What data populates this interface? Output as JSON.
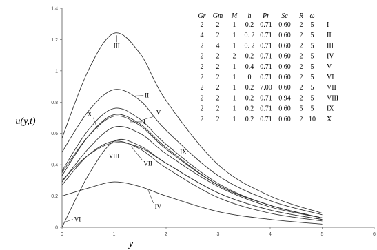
{
  "chart_data": {
    "type": "line",
    "xlabel": "y",
    "ylabel": "u(y,t)",
    "xlim": [
      0,
      6
    ],
    "ylim": [
      0,
      1.4
    ],
    "x_ticks": [
      "0",
      "1",
      "2",
      "3",
      "4",
      "5",
      "6"
    ],
    "y_ticks": [
      "0",
      "0.2",
      "0.4",
      "0.6",
      "0.8",
      "1",
      "1.2",
      "1.4"
    ],
    "grid": false,
    "series": [
      {
        "name": "I",
        "x": [
          0,
          0.5,
          1,
          1.5,
          2,
          3,
          4,
          5
        ],
        "y": [
          0.35,
          0.58,
          0.71,
          0.65,
          0.5,
          0.27,
          0.14,
          0.06
        ]
      },
      {
        "name": "II",
        "x": [
          0,
          0.5,
          1,
          1.5,
          2,
          3,
          4,
          5
        ],
        "y": [
          0.48,
          0.74,
          0.88,
          0.81,
          0.62,
          0.33,
          0.17,
          0.08
        ]
      },
      {
        "name": "III",
        "x": [
          0,
          0.5,
          1,
          1.5,
          2,
          3,
          4,
          5
        ],
        "y": [
          0.57,
          1.0,
          1.24,
          1.11,
          0.81,
          0.4,
          0.2,
          0.09
        ]
      },
      {
        "name": "IV",
        "x": [
          0,
          0.5,
          1,
          1.5,
          2,
          3,
          4,
          5
        ],
        "y": [
          0.2,
          0.25,
          0.29,
          0.26,
          0.2,
          0.1,
          0.05,
          0.02
        ]
      },
      {
        "name": "V",
        "x": [
          0,
          0.5,
          1,
          1.5,
          2,
          3,
          4,
          5
        ],
        "y": [
          0.36,
          0.62,
          0.76,
          0.69,
          0.53,
          0.28,
          0.14,
          0.06
        ]
      },
      {
        "name": "VI",
        "x": [
          0,
          0.5,
          1,
          1.5,
          2,
          3,
          4,
          5
        ],
        "y": [
          0.0,
          0.33,
          0.55,
          0.52,
          0.41,
          0.22,
          0.11,
          0.05
        ]
      },
      {
        "name": "VII",
        "x": [
          0,
          0.5,
          1,
          1.5,
          2,
          3,
          4,
          5
        ],
        "y": [
          0.27,
          0.46,
          0.55,
          0.5,
          0.38,
          0.19,
          0.09,
          0.04
        ]
      },
      {
        "name": "VIII",
        "x": [
          0,
          0.5,
          1,
          1.5,
          2,
          3,
          4,
          5
        ],
        "y": [
          0.3,
          0.46,
          0.54,
          0.51,
          0.41,
          0.22,
          0.11,
          0.05
        ]
      },
      {
        "name": "IX",
        "x": [
          0,
          0.5,
          1,
          1.5,
          2,
          3,
          4,
          5
        ],
        "y": [
          0.29,
          0.5,
          0.64,
          0.6,
          0.47,
          0.26,
          0.13,
          0.06
        ]
      },
      {
        "name": "X",
        "x": [
          0,
          0.5,
          1,
          1.5,
          2,
          3,
          4,
          5
        ],
        "y": [
          0.33,
          0.58,
          0.72,
          0.66,
          0.51,
          0.27,
          0.14,
          0.06
        ]
      }
    ],
    "curve_labels": [
      {
        "text": "I",
        "series": "I",
        "at_x": 1.3,
        "at_y": 0.7
      },
      {
        "text": "II",
        "series": "II",
        "at_x": 1.3,
        "at_y": 0.89
      },
      {
        "text": "III",
        "series": "III",
        "at_x": 1.05,
        "at_y": 1.17
      },
      {
        "text": "IV",
        "series": "IV",
        "at_x": 1.65,
        "at_y": 0.17
      },
      {
        "text": "V",
        "series": "V",
        "at_x": 1.52,
        "at_y": 0.78
      },
      {
        "text": "VI",
        "series": "VI",
        "at_x": 0.05,
        "at_y": 0.03
      },
      {
        "text": "VII",
        "series": "VII",
        "at_x": 1.33,
        "at_y": 0.48
      },
      {
        "text": "VIII",
        "series": "VIII",
        "at_x": 1.0,
        "at_y": 0.52
      },
      {
        "text": "IX",
        "series": "IX",
        "at_x": 1.95,
        "at_y": 0.56
      },
      {
        "text": "X",
        "series": "X",
        "at_x": 0.68,
        "at_y": 0.72
      }
    ],
    "table": {
      "headers": [
        "Gr",
        "Gm",
        "M",
        "h",
        "Pr",
        "Sc",
        "R",
        "ω",
        ""
      ],
      "rows": [
        [
          "2",
          "2",
          "1",
          "0.2",
          "0.71",
          "0.60",
          "2",
          "5",
          "I"
        ],
        [
          "4",
          "2",
          "1",
          "0. 2",
          "0.71",
          "0.60",
          "2",
          "5",
          "II"
        ],
        [
          "2",
          "4",
          "1",
          "0. 2",
          "0.71",
          "0.60",
          "2",
          "5",
          "III"
        ],
        [
          "2",
          "2",
          "2",
          "0.2",
          "0.71",
          "0.60",
          "2",
          "5",
          "IV"
        ],
        [
          "2",
          "2",
          "1",
          "0.4",
          "0.71",
          "0.60",
          "2",
          "5",
          "V"
        ],
        [
          "2",
          "2",
          "1",
          "0",
          "0.71",
          "0.60",
          "2",
          "5",
          "VI"
        ],
        [
          "2",
          "2",
          "1",
          "0.2",
          "7.00",
          "0.60",
          "2",
          "5",
          "VII"
        ],
        [
          "2",
          "2",
          "1",
          "0.2",
          "0.71",
          "0.94",
          "2",
          "5",
          "VIII"
        ],
        [
          "2",
          "2",
          "1",
          "0.2",
          "0.71",
          "0.60",
          "5",
          "5",
          "IX"
        ],
        [
          "2",
          "2",
          "1",
          "0.2",
          "0.71",
          "0.60",
          "2",
          "10",
          "X"
        ]
      ]
    }
  }
}
